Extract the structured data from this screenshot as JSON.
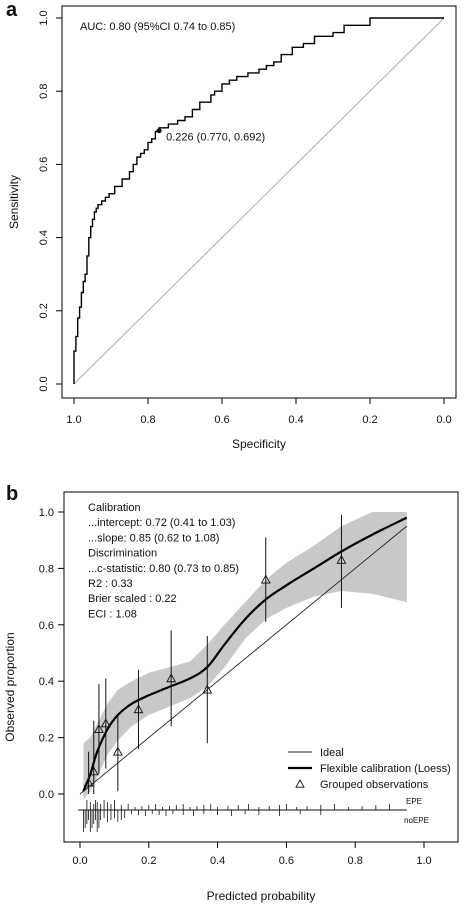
{
  "chart_data": [
    {
      "panel": "a",
      "type": "line",
      "xlabel": "Specificity",
      "ylabel": "Sensitivity",
      "xlim": [
        1.0,
        0.0
      ],
      "ylim": [
        0.0,
        1.0
      ],
      "xticks": [
        "1.0",
        "0.8",
        "0.6",
        "0.4",
        "0.2",
        "0.0"
      ],
      "yticks": [
        "0.0",
        "0.2",
        "0.4",
        "0.6",
        "0.8",
        "1.0"
      ],
      "auc_text": "AUC: 0.80 (95%CI 0.74 to 0.85)",
      "threshold_text": "0.226 (0.770, 0.692)",
      "threshold_point": {
        "specificity": 0.77,
        "sensitivity": 0.692
      },
      "reference_line": [
        [
          1.0,
          0.0
        ],
        [
          0.0,
          1.0
        ]
      ],
      "series": [
        {
          "specificity": [
            1.0,
            1.0,
            0.995,
            0.995,
            0.99,
            0.99,
            0.985,
            0.985,
            0.98,
            0.98,
            0.975,
            0.975,
            0.97,
            0.97,
            0.965,
            0.965,
            0.96,
            0.96,
            0.955,
            0.955,
            0.95,
            0.95,
            0.945,
            0.945,
            0.94,
            0.94,
            0.935,
            0.935,
            0.93,
            0.93,
            0.925,
            0.925,
            0.915,
            0.915,
            0.905,
            0.905,
            0.89,
            0.89,
            0.87,
            0.87,
            0.85,
            0.85,
            0.84,
            0.84,
            0.83,
            0.83,
            0.82,
            0.82,
            0.81,
            0.81,
            0.8,
            0.8,
            0.79,
            0.79,
            0.78,
            0.78,
            0.77,
            0.77,
            0.745,
            0.745,
            0.72,
            0.72,
            0.7,
            0.7,
            0.68,
            0.68,
            0.66,
            0.66,
            0.63,
            0.63,
            0.62,
            0.62,
            0.6,
            0.6,
            0.58,
            0.58,
            0.56,
            0.56,
            0.53,
            0.53,
            0.5,
            0.5,
            0.48,
            0.48,
            0.46,
            0.46,
            0.44,
            0.44,
            0.41,
            0.41,
            0.38,
            0.38,
            0.35,
            0.35,
            0.3,
            0.3,
            0.27,
            0.27,
            0.2,
            0.2,
            0.0
          ],
          "sensitivity": [
            0.0,
            0.09,
            0.09,
            0.13,
            0.13,
            0.18,
            0.18,
            0.21,
            0.21,
            0.25,
            0.25,
            0.28,
            0.28,
            0.3,
            0.3,
            0.35,
            0.35,
            0.4,
            0.4,
            0.43,
            0.43,
            0.45,
            0.45,
            0.47,
            0.47,
            0.48,
            0.48,
            0.49,
            0.49,
            0.49,
            0.49,
            0.5,
            0.5,
            0.51,
            0.51,
            0.52,
            0.52,
            0.54,
            0.54,
            0.56,
            0.56,
            0.58,
            0.58,
            0.6,
            0.6,
            0.62,
            0.62,
            0.63,
            0.63,
            0.64,
            0.64,
            0.66,
            0.66,
            0.67,
            0.67,
            0.69,
            0.69,
            0.7,
            0.7,
            0.71,
            0.71,
            0.72,
            0.72,
            0.73,
            0.73,
            0.75,
            0.75,
            0.77,
            0.77,
            0.79,
            0.79,
            0.8,
            0.8,
            0.82,
            0.82,
            0.83,
            0.83,
            0.84,
            0.84,
            0.85,
            0.85,
            0.86,
            0.86,
            0.87,
            0.87,
            0.88,
            0.88,
            0.9,
            0.9,
            0.92,
            0.92,
            0.93,
            0.93,
            0.95,
            0.95,
            0.96,
            0.96,
            0.98,
            0.98,
            1.0,
            1.0
          ]
        }
      ]
    },
    {
      "panel": "b",
      "type": "line",
      "xlabel": "Predicted probability",
      "ylabel": "Observed proportion",
      "xlim": [
        0.0,
        1.0
      ],
      "ylim": [
        0.0,
        1.0
      ],
      "xticks": [
        "0.0",
        "0.2",
        "0.4",
        "0.6",
        "0.8",
        "1.0"
      ],
      "yticks": [
        "0.0",
        "0.2",
        "0.4",
        "0.6",
        "0.8",
        "1.0"
      ],
      "stats_lines": [
        "Calibration",
        "...intercept: 0.72 (0.41 to 1.03)",
        "...slope: 0.85 (0.62 to 1.08)",
        "Discrimination",
        "...c-statistic: 0.80 (0.73 to 0.85)",
        "R2           :  0.33",
        "Brier scaled  :  0.22",
        "ECI         :  1.08"
      ],
      "legend": [
        {
          "label": "Ideal",
          "style": "thin-line"
        },
        {
          "label": "Flexible calibration (Loess)",
          "style": "thick-line"
        },
        {
          "label": "Grouped observations",
          "style": "triangle"
        }
      ],
      "rug_labels": [
        "EPE",
        "noEPE"
      ],
      "ideal_line": [
        [
          0.0,
          0.0
        ],
        [
          0.95,
          0.95
        ]
      ],
      "loess": {
        "x": [
          0.01,
          0.03,
          0.05,
          0.08,
          0.11,
          0.15,
          0.2,
          0.26,
          0.32,
          0.37,
          0.42,
          0.48,
          0.54,
          0.6,
          0.68,
          0.76,
          0.85,
          0.95
        ],
        "y": [
          0.01,
          0.07,
          0.15,
          0.23,
          0.28,
          0.32,
          0.35,
          0.38,
          0.41,
          0.45,
          0.53,
          0.62,
          0.69,
          0.74,
          0.8,
          0.86,
          0.92,
          0.98
        ],
        "ci_lower": [
          -0.02,
          0.01,
          0.06,
          0.14,
          0.19,
          0.24,
          0.28,
          0.31,
          0.34,
          0.38,
          0.45,
          0.55,
          0.62,
          0.66,
          0.7,
          0.72,
          0.71,
          0.68
        ],
        "ci_upper": [
          0.18,
          0.2,
          0.25,
          0.32,
          0.37,
          0.4,
          0.43,
          0.45,
          0.47,
          0.53,
          0.6,
          0.68,
          0.76,
          0.82,
          0.88,
          0.95,
          1.0,
          1.0
        ]
      },
      "grouped_observations": [
        {
          "x": 0.025,
          "y": 0.04,
          "lo": 0.0,
          "hi": 0.15
        },
        {
          "x": 0.04,
          "y": 0.08,
          "lo": 0.0,
          "hi": 0.26
        },
        {
          "x": 0.055,
          "y": 0.23,
          "lo": 0.07,
          "hi": 0.39
        },
        {
          "x": 0.075,
          "y": 0.25,
          "lo": 0.09,
          "hi": 0.41
        },
        {
          "x": 0.11,
          "y": 0.15,
          "lo": 0.01,
          "hi": 0.28
        },
        {
          "x": 0.17,
          "y": 0.3,
          "lo": 0.16,
          "hi": 0.44
        },
        {
          "x": 0.265,
          "y": 0.41,
          "lo": 0.24,
          "hi": 0.58
        },
        {
          "x": 0.37,
          "y": 0.37,
          "lo": 0.18,
          "hi": 0.56
        },
        {
          "x": 0.54,
          "y": 0.76,
          "lo": 0.61,
          "hi": 0.91
        },
        {
          "x": 0.76,
          "y": 0.83,
          "lo": 0.66,
          "hi": 0.99
        }
      ],
      "rug_epe_x": [
        0.02,
        0.03,
        0.04,
        0.045,
        0.05,
        0.06,
        0.07,
        0.08,
        0.09,
        0.1,
        0.12,
        0.14,
        0.16,
        0.18,
        0.2,
        0.22,
        0.24,
        0.26,
        0.28,
        0.3,
        0.32,
        0.34,
        0.36,
        0.38,
        0.4,
        0.43,
        0.46,
        0.49,
        0.52,
        0.55,
        0.58,
        0.6,
        0.63,
        0.66,
        0.7,
        0.74,
        0.78,
        0.82,
        0.86,
        0.9
      ],
      "rug_noepe_x": [
        0.01,
        0.015,
        0.02,
        0.025,
        0.03,
        0.035,
        0.04,
        0.045,
        0.05,
        0.055,
        0.06,
        0.07,
        0.08,
        0.09,
        0.1,
        0.11,
        0.12,
        0.13,
        0.15,
        0.17,
        0.19,
        0.21,
        0.23,
        0.25,
        0.27,
        0.3,
        0.33,
        0.36,
        0.4,
        0.44,
        0.48,
        0.52,
        0.58,
        0.64,
        0.7
      ]
    }
  ]
}
